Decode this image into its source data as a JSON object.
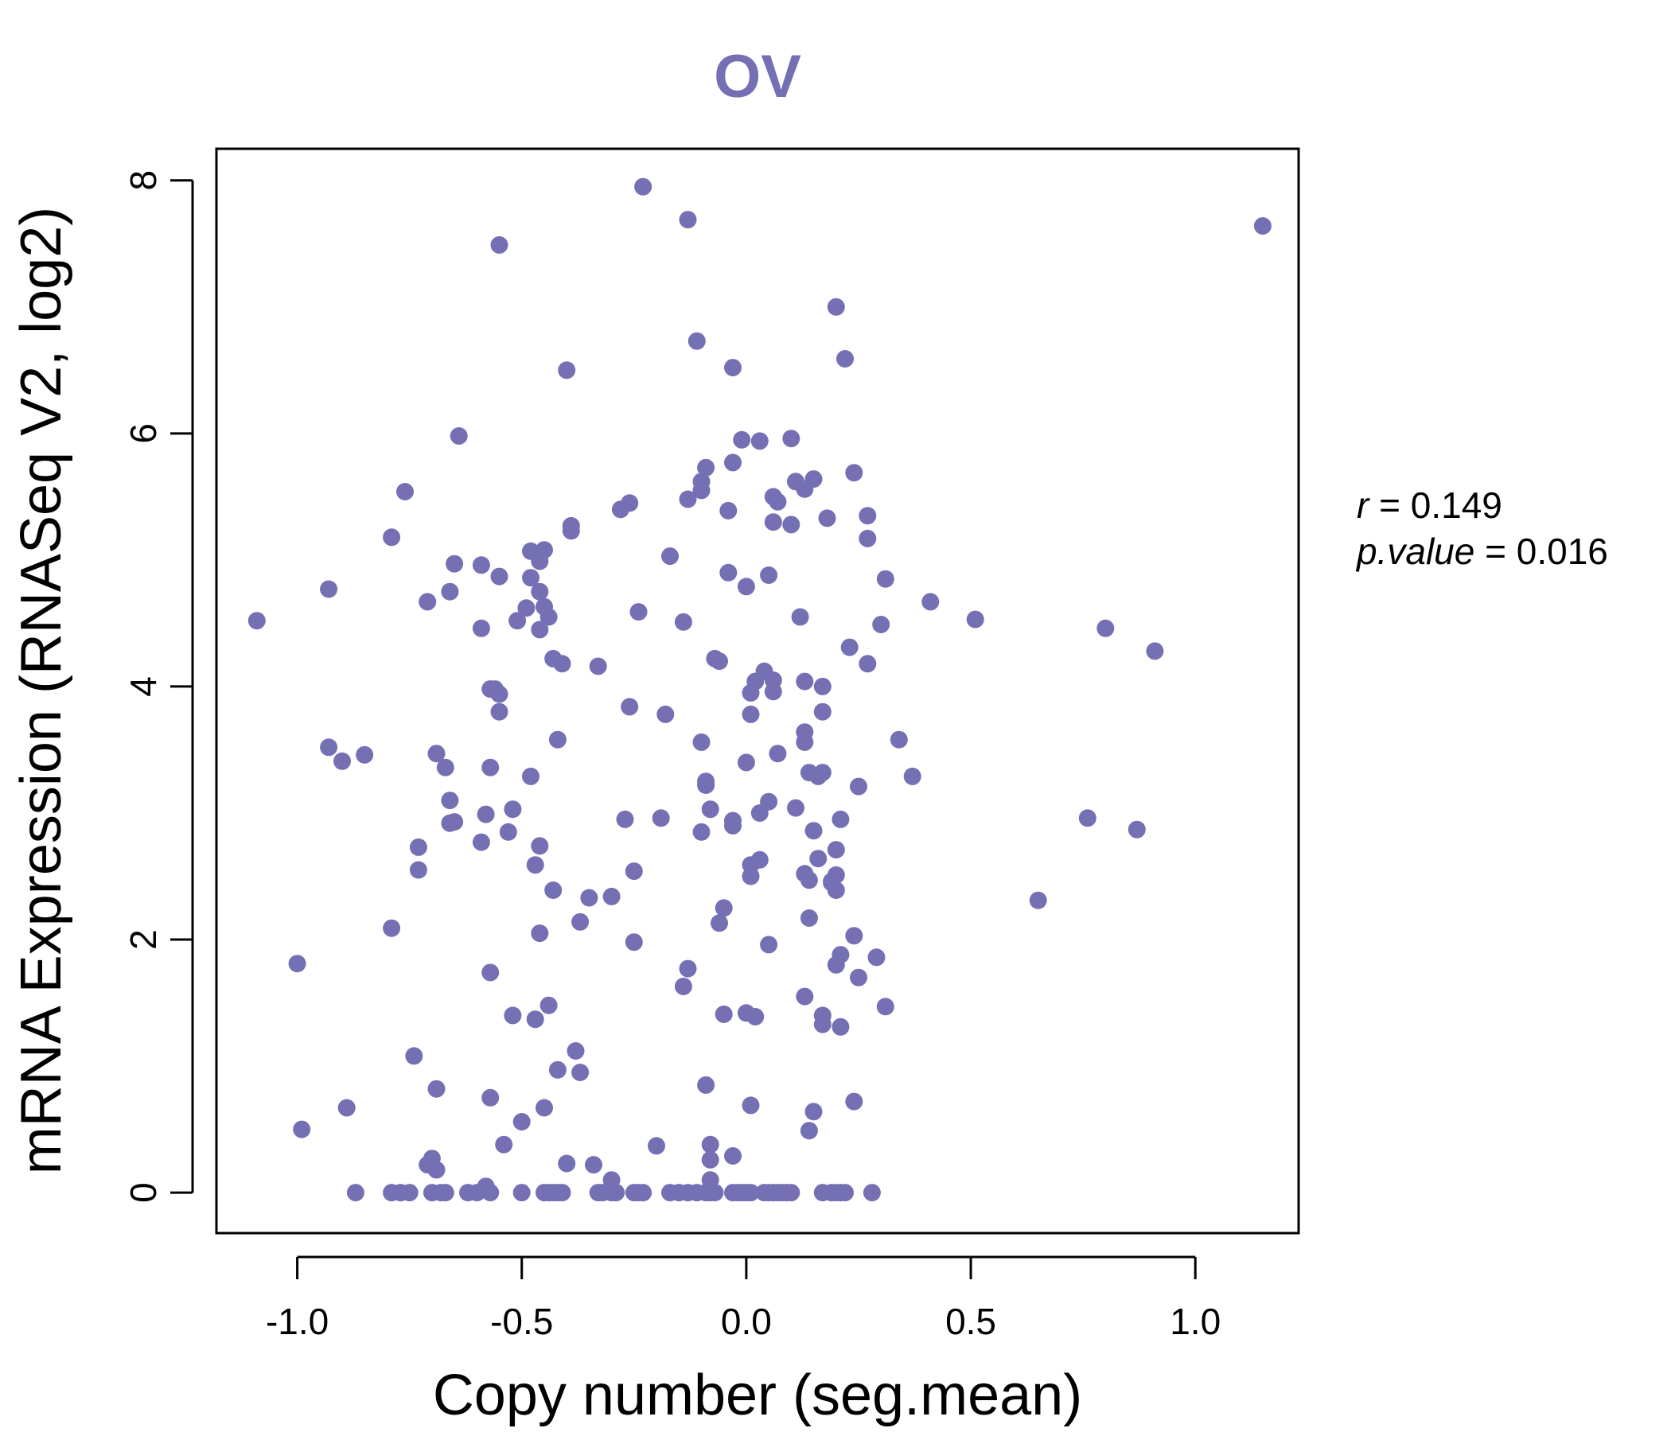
{
  "chart_data": {
    "type": "scatter",
    "title": "OV",
    "xlabel": "Copy number (seg.mean)",
    "ylabel": "mRNA Expression (RNASeq V2, log2)",
    "xlim": [
      -1.18,
      1.23
    ],
    "ylim": [
      -0.32,
      8.25
    ],
    "x_ticks": [
      -1.0,
      -0.5,
      0.0,
      0.5,
      1.0
    ],
    "x_tick_labels": [
      "-1.0",
      "-0.5",
      "0.0",
      "0.5",
      "1.0"
    ],
    "y_ticks": [
      0,
      2,
      4,
      6,
      8
    ],
    "y_tick_labels": [
      "0",
      "2",
      "4",
      "6",
      "8"
    ],
    "grid": false,
    "legend": "none",
    "point_color": "#7570b3",
    "annotations": {
      "r_label": "r",
      "r_value": "= 0.149",
      "p_label": "p.value",
      "p_value": "= 0.016"
    },
    "points": [
      [
        -1.09,
        4.52
      ],
      [
        -1.0,
        1.81
      ],
      [
        -0.99,
        0.5
      ],
      [
        -0.93,
        4.77
      ],
      [
        -0.93,
        3.52
      ],
      [
        -0.9,
        3.41
      ],
      [
        -0.89,
        0.67
      ],
      [
        -0.85,
        3.46
      ],
      [
        -0.79,
        5.18
      ],
      [
        -0.79,
        2.09
      ],
      [
        -0.76,
        5.54
      ],
      [
        -0.74,
        1.08
      ],
      [
        -0.73,
        2.55
      ],
      [
        -0.73,
        2.73
      ],
      [
        -0.71,
        4.67
      ],
      [
        -0.71,
        0.22
      ],
      [
        -0.7,
        0.27
      ],
      [
        -0.69,
        0.82
      ],
      [
        -0.69,
        0.18
      ],
      [
        -0.69,
        3.47
      ],
      [
        -0.67,
        3.36
      ],
      [
        -0.66,
        4.75
      ],
      [
        -0.66,
        3.1
      ],
      [
        -0.66,
        2.92
      ],
      [
        -0.65,
        4.97
      ],
      [
        -0.65,
        2.93
      ],
      [
        -0.64,
        5.98
      ],
      [
        -0.59,
        4.96
      ],
      [
        -0.59,
        4.46
      ],
      [
        -0.59,
        2.77
      ],
      [
        -0.58,
        2.99
      ],
      [
        -0.58,
        0.05
      ],
      [
        -0.57,
        1.74
      ],
      [
        -0.57,
        0.75
      ],
      [
        -0.57,
        3.98
      ],
      [
        -0.57,
        3.36
      ],
      [
        -0.56,
        3.98
      ],
      [
        -0.55,
        7.49
      ],
      [
        -0.55,
        4.87
      ],
      [
        -0.55,
        3.94
      ],
      [
        -0.55,
        3.8
      ],
      [
        -0.54,
        0.38
      ],
      [
        -0.53,
        2.85
      ],
      [
        -0.52,
        3.03
      ],
      [
        -0.52,
        1.4
      ],
      [
        -0.51,
        4.52
      ],
      [
        -0.5,
        0.56
      ],
      [
        -0.49,
        4.62
      ],
      [
        -0.48,
        5.07
      ],
      [
        -0.48,
        4.86
      ],
      [
        -0.48,
        3.29
      ],
      [
        -0.47,
        1.37
      ],
      [
        -0.47,
        2.59
      ],
      [
        -0.46,
        4.99
      ],
      [
        -0.46,
        4.75
      ],
      [
        -0.46,
        4.45
      ],
      [
        -0.46,
        2.74
      ],
      [
        -0.46,
        2.05
      ],
      [
        -0.45,
        5.08
      ],
      [
        -0.45,
        4.63
      ],
      [
        -0.45,
        0.67
      ],
      [
        -0.44,
        4.55
      ],
      [
        -0.44,
        1.48
      ],
      [
        -0.43,
        4.22
      ],
      [
        -0.43,
        2.39
      ],
      [
        -0.42,
        3.58
      ],
      [
        -0.42,
        0.97
      ],
      [
        -0.41,
        4.18
      ],
      [
        -0.4,
        6.5
      ],
      [
        -0.4,
        0.23
      ],
      [
        -0.39,
        5.23
      ],
      [
        -0.39,
        5.27
      ],
      [
        -0.38,
        1.12
      ],
      [
        -0.37,
        0.95
      ],
      [
        -0.37,
        2.14
      ],
      [
        -0.35,
        2.33
      ],
      [
        -0.34,
        0.22
      ],
      [
        -0.33,
        4.16
      ],
      [
        -0.3,
        2.34
      ],
      [
        -0.3,
        0.1
      ],
      [
        -0.28,
        5.4
      ],
      [
        -0.27,
        2.95
      ],
      [
        -0.26,
        5.45
      ],
      [
        -0.26,
        3.84
      ],
      [
        -0.25,
        1.98
      ],
      [
        -0.25,
        2.54
      ],
      [
        -0.24,
        4.59
      ],
      [
        -0.23,
        7.95
      ],
      [
        -0.2,
        0.37
      ],
      [
        -0.19,
        2.96
      ],
      [
        -0.18,
        3.78
      ],
      [
        -0.17,
        5.03
      ],
      [
        -0.14,
        4.51
      ],
      [
        -0.14,
        1.63
      ],
      [
        -0.13,
        7.69
      ],
      [
        -0.13,
        1.77
      ],
      [
        -0.13,
        5.48
      ],
      [
        -0.11,
        6.73
      ],
      [
        -0.1,
        5.55
      ],
      [
        -0.1,
        5.62
      ],
      [
        -0.1,
        3.56
      ],
      [
        -0.1,
        2.85
      ],
      [
        -0.09,
        3.25
      ],
      [
        -0.09,
        3.22
      ],
      [
        -0.09,
        5.73
      ],
      [
        -0.09,
        0.85
      ],
      [
        -0.08,
        3.03
      ],
      [
        -0.08,
        0.26
      ],
      [
        -0.08,
        0.1
      ],
      [
        -0.08,
        0.38
      ],
      [
        -0.07,
        4.22
      ],
      [
        -0.06,
        4.2
      ],
      [
        -0.06,
        2.13
      ],
      [
        -0.05,
        1.41
      ],
      [
        -0.05,
        2.25
      ],
      [
        -0.04,
        4.9
      ],
      [
        -0.04,
        5.39
      ],
      [
        -0.03,
        6.52
      ],
      [
        -0.03,
        2.9
      ],
      [
        -0.03,
        2.94
      ],
      [
        -0.03,
        0.29
      ],
      [
        -0.03,
        5.77
      ],
      [
        -0.01,
        5.95
      ],
      [
        0.0,
        1.42
      ],
      [
        0.0,
        4.79
      ],
      [
        0.0,
        3.4
      ],
      [
        0.01,
        3.95
      ],
      [
        0.01,
        2.59
      ],
      [
        0.01,
        2.5
      ],
      [
        0.01,
        3.78
      ],
      [
        0.01,
        0.69
      ],
      [
        0.02,
        4.04
      ],
      [
        0.02,
        1.39
      ],
      [
        0.03,
        5.94
      ],
      [
        0.03,
        2.63
      ],
      [
        0.03,
        3.0
      ],
      [
        0.04,
        4.12
      ],
      [
        0.05,
        4.88
      ],
      [
        0.05,
        1.96
      ],
      [
        0.05,
        3.09
      ],
      [
        0.06,
        4.05
      ],
      [
        0.06,
        3.96
      ],
      [
        0.06,
        5.5
      ],
      [
        0.06,
        5.3
      ],
      [
        0.07,
        5.46
      ],
      [
        0.07,
        3.47
      ],
      [
        0.1,
        5.96
      ],
      [
        0.1,
        5.28
      ],
      [
        0.11,
        5.62
      ],
      [
        0.11,
        3.04
      ],
      [
        0.12,
        4.55
      ],
      [
        0.13,
        4.04
      ],
      [
        0.13,
        3.56
      ],
      [
        0.13,
        3.64
      ],
      [
        0.13,
        1.55
      ],
      [
        0.13,
        2.52
      ],
      [
        0.13,
        5.56
      ],
      [
        0.14,
        2.47
      ],
      [
        0.14,
        3.32
      ],
      [
        0.14,
        2.17
      ],
      [
        0.14,
        0.49
      ],
      [
        0.15,
        5.64
      ],
      [
        0.15,
        2.86
      ],
      [
        0.15,
        0.64
      ],
      [
        0.16,
        3.29
      ],
      [
        0.16,
        2.64
      ],
      [
        0.17,
        3.32
      ],
      [
        0.17,
        1.4
      ],
      [
        0.17,
        1.33
      ],
      [
        0.17,
        3.8
      ],
      [
        0.17,
        4.0
      ],
      [
        0.18,
        5.33
      ],
      [
        0.19,
        2.45
      ],
      [
        0.19,
        2.46
      ],
      [
        0.2,
        7.0
      ],
      [
        0.2,
        2.51
      ],
      [
        0.2,
        2.39
      ],
      [
        0.2,
        2.71
      ],
      [
        0.2,
        1.8
      ],
      [
        0.21,
        1.88
      ],
      [
        0.21,
        1.31
      ],
      [
        0.21,
        2.95
      ],
      [
        0.22,
        6.59
      ],
      [
        0.23,
        4.31
      ],
      [
        0.24,
        5.69
      ],
      [
        0.24,
        0.72
      ],
      [
        0.24,
        2.03
      ],
      [
        0.25,
        3.21
      ],
      [
        0.25,
        1.7
      ],
      [
        0.27,
        5.35
      ],
      [
        0.27,
        5.17
      ],
      [
        0.27,
        4.18
      ],
      [
        0.29,
        1.86
      ],
      [
        0.3,
        4.49
      ],
      [
        0.31,
        1.47
      ],
      [
        0.31,
        4.85
      ],
      [
        0.34,
        3.58
      ],
      [
        0.37,
        3.29
      ],
      [
        0.41,
        4.67
      ],
      [
        0.51,
        4.53
      ],
      [
        0.65,
        2.31
      ],
      [
        0.76,
        2.96
      ],
      [
        0.8,
        4.46
      ],
      [
        0.87,
        2.87
      ],
      [
        0.91,
        4.28
      ],
      [
        1.15,
        7.64
      ],
      [
        -0.87,
        0.0
      ],
      [
        -0.79,
        0.0
      ],
      [
        -0.77,
        0.0
      ],
      [
        -0.75,
        0.0
      ],
      [
        -0.7,
        0.0
      ],
      [
        -0.68,
        0.0
      ],
      [
        -0.67,
        0.0
      ],
      [
        -0.62,
        0.0
      ],
      [
        -0.6,
        0.0
      ],
      [
        -0.57,
        0.0
      ],
      [
        -0.5,
        0.0
      ],
      [
        -0.45,
        0.0
      ],
      [
        -0.44,
        0.0
      ],
      [
        -0.43,
        0.0
      ],
      [
        -0.42,
        0.0
      ],
      [
        -0.41,
        0.0
      ],
      [
        -0.33,
        0.0
      ],
      [
        -0.32,
        0.0
      ],
      [
        -0.3,
        0.0
      ],
      [
        -0.29,
        0.0
      ],
      [
        -0.25,
        0.0
      ],
      [
        -0.24,
        0.0
      ],
      [
        -0.23,
        0.0
      ],
      [
        -0.17,
        0.0
      ],
      [
        -0.15,
        0.0
      ],
      [
        -0.13,
        0.0
      ],
      [
        -0.11,
        0.0
      ],
      [
        -0.09,
        0.0
      ],
      [
        -0.08,
        0.0
      ],
      [
        -0.07,
        0.0
      ],
      [
        -0.03,
        0.0
      ],
      [
        -0.02,
        0.0
      ],
      [
        -0.01,
        0.0
      ],
      [
        0.0,
        0.0
      ],
      [
        0.01,
        0.0
      ],
      [
        0.04,
        0.0
      ],
      [
        0.05,
        0.0
      ],
      [
        0.06,
        0.0
      ],
      [
        0.07,
        0.0
      ],
      [
        0.08,
        0.0
      ],
      [
        0.09,
        0.0
      ],
      [
        0.1,
        0.0
      ],
      [
        0.17,
        0.0
      ],
      [
        0.19,
        0.0
      ],
      [
        0.2,
        0.0
      ],
      [
        0.21,
        0.0
      ],
      [
        0.22,
        0.0
      ],
      [
        0.28,
        0.0
      ]
    ]
  }
}
